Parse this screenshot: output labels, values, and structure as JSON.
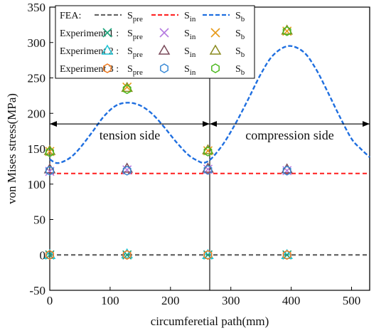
{
  "chart_data": {
    "type": "line",
    "xlabel": "circumferetial path(mm)",
    "ylabel": "von Mises stress(MPa)",
    "xlim": [
      0,
      530
    ],
    "ylim": [
      -50,
      350
    ],
    "xticks": [
      0,
      100,
      200,
      300,
      400,
      500
    ],
    "yticks": [
      -50,
      0,
      50,
      100,
      150,
      200,
      250,
      300,
      350
    ],
    "xtick_labels": [
      "0",
      "100",
      "200",
      "300",
      "400",
      "500"
    ],
    "ytick_labels": [
      "-50",
      "0",
      "50",
      "100",
      "150",
      "200",
      "250",
      "300",
      "350"
    ],
    "vertical_lines": [
      265,
      530
    ],
    "annotations": [
      {
        "text": "tension side",
        "x_from": 0,
        "x_to": 265,
        "y": 185
      },
      {
        "text": "compression side",
        "x_from": 265,
        "x_to": 530,
        "y": 185
      }
    ],
    "legend": {
      "placement": "top-left",
      "rows": [
        {
          "label": "FEA:",
          "items": [
            "S_pre",
            "S_in",
            "S_b"
          ]
        },
        {
          "label": "Experiment 1 :",
          "items": [
            "S_pre",
            "S_in",
            "S_b"
          ]
        },
        {
          "label": "Experiment 2 :",
          "items": [
            "S_pre",
            "S_in",
            "S_b"
          ]
        },
        {
          "label": "Experiment 3 :",
          "items": [
            "S_pre",
            "S_in",
            "S_b"
          ]
        }
      ],
      "symbol_main": "S",
      "subscripts": [
        "pre",
        "in",
        "b"
      ]
    },
    "lines": [
      {
        "name": "S_pre",
        "style": "dash",
        "color": "#666666",
        "x": [
          0,
          530
        ],
        "y": [
          0,
          0
        ]
      },
      {
        "name": "S_in",
        "style": "dash",
        "color": "#ff2a2a",
        "x": [
          0,
          530
        ],
        "y": [
          115,
          115
        ]
      },
      {
        "name": "S_b",
        "style": "dash",
        "color": "#1f6fe0",
        "x": [
          0,
          10,
          20,
          35,
          50,
          70,
          90,
          110,
          130,
          150,
          170,
          190,
          210,
          230,
          245,
          255,
          265,
          275,
          290,
          310,
          330,
          350,
          370,
          395,
          420,
          440,
          460,
          480,
          500,
          515,
          530
        ],
        "y": [
          135,
          130,
          131,
          138,
          151,
          173,
          196,
          211,
          215,
          211,
          199,
          180,
          159,
          141,
          133,
          130,
          134,
          143,
          160,
          189,
          222,
          256,
          282,
          295,
          287,
          264,
          231,
          196,
          164,
          150,
          138
        ]
      }
    ],
    "experiments": [
      {
        "name": "Experiment 1",
        "S_pre": {
          "marker": "x",
          "color": "#1aa37a",
          "x": [
            0,
            128,
            262,
            393
          ],
          "y": [
            0,
            0,
            0,
            0
          ]
        },
        "S_in": {
          "marker": "x",
          "color": "#b57be0",
          "x": [
            0,
            128,
            262,
            393
          ],
          "y": [
            118,
            120,
            121,
            119
          ]
        },
        "S_b": {
          "marker": "x",
          "color": "#e69a19",
          "x": [
            0,
            128,
            262,
            393
          ],
          "y": [
            146,
            237,
            147,
            316
          ]
        }
      },
      {
        "name": "Experiment 2",
        "S_pre": {
          "marker": "triangle",
          "color": "#1ec6d6",
          "x": [
            0,
            128,
            262,
            393
          ],
          "y": [
            0,
            1,
            0,
            0
          ]
        },
        "S_in": {
          "marker": "triangle",
          "color": "#7a4a5a",
          "x": [
            0,
            128,
            262,
            393
          ],
          "y": [
            121,
            122,
            122,
            121
          ]
        },
        "S_b": {
          "marker": "triangle",
          "color": "#8a8a1e",
          "x": [
            0,
            128,
            262,
            393
          ],
          "y": [
            147,
            236,
            148,
            317
          ]
        }
      },
      {
        "name": "Experiment 3",
        "S_pre": {
          "marker": "hexagon",
          "color": "#f07a1e",
          "x": [
            0,
            128,
            262,
            393
          ],
          "y": [
            0,
            0,
            0,
            0
          ]
        },
        "S_in": {
          "marker": "hexagon",
          "color": "#3a8ad6",
          "x": [
            0,
            128,
            262,
            393
          ],
          "y": [
            119,
            119,
            120,
            119
          ]
        },
        "S_b": {
          "marker": "hexagon",
          "color": "#4cb81e",
          "x": [
            0,
            128,
            262,
            393
          ],
          "y": [
            145,
            234,
            146,
            316
          ]
        }
      }
    ]
  }
}
